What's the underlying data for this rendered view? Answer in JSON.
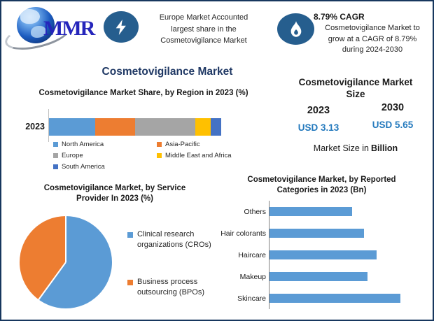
{
  "brand": {
    "logo_text": "MMR"
  },
  "header": {
    "callout_europe": {
      "lines": [
        "Europe Market Accounted",
        "largest share in the",
        "Cosmetovigilance Market"
      ]
    },
    "callout_cagr": {
      "headline": "8.79% CAGR",
      "lines": [
        "Cosmetovigilance Market to",
        "grow at a CAGR of 8.79%",
        "during 2024-2030"
      ]
    },
    "main_title": "Cosmetovigilance Market"
  },
  "market_size_panel": {
    "title_line1": "Cosmetovigilance Market",
    "title_line2": "Size",
    "columns": [
      {
        "year": "2023",
        "value": "USD 3.13"
      },
      {
        "year": "2030",
        "value": "USD 5.65"
      }
    ],
    "caption_regular": "Market Size in",
    "caption_bold": "Billion",
    "value_color": "#2379bd"
  },
  "chart_data": [
    {
      "type": "bar",
      "variant": "horizontal-stacked",
      "title": "Cosmetovigilance Market Share, by Region in 2023 (%)",
      "categories": [
        "2023"
      ],
      "series": [
        {
          "name": "North America",
          "values": [
            27
          ],
          "color": "#5b9bd5"
        },
        {
          "name": "Asia-Pacific",
          "values": [
            23
          ],
          "color": "#ed7d31"
        },
        {
          "name": "Europe",
          "values": [
            35
          ],
          "color": "#a5a5a5"
        },
        {
          "name": "Middle East and Africa",
          "values": [
            9
          ],
          "color": "#ffc000"
        },
        {
          "name": "South America",
          "values": [
            6
          ],
          "color": "#4472c4"
        }
      ],
      "unit": "%",
      "xlim": [
        0,
        100
      ],
      "legend_position": "bottom"
    },
    {
      "type": "pie",
      "title": "Cosmetovigilance Market, by Service Provider In 2023 (%)",
      "labels": [
        "Clinical research organizations (CROs)",
        "Business process outsourcing (BPOs)"
      ],
      "values": [
        60,
        40
      ],
      "colors": [
        "#5b9bd5",
        "#ed7d31"
      ],
      "unit": "%",
      "start_angle_deg": 0,
      "legend_position": "right"
    },
    {
      "type": "bar",
      "variant": "horizontal",
      "title": "Cosmetovigilance Market, by Reported Categories in 2023 (Bn)",
      "categories": [
        "Others",
        "Hair colorants",
        "Haircare",
        "Makeup",
        "Skincare"
      ],
      "values_relative_to_max": [
        0.63,
        0.72,
        0.82,
        0.75,
        1.0
      ],
      "color": "#5b9bd5",
      "unit": "Bn",
      "axis_labels_shown": false
    }
  ]
}
